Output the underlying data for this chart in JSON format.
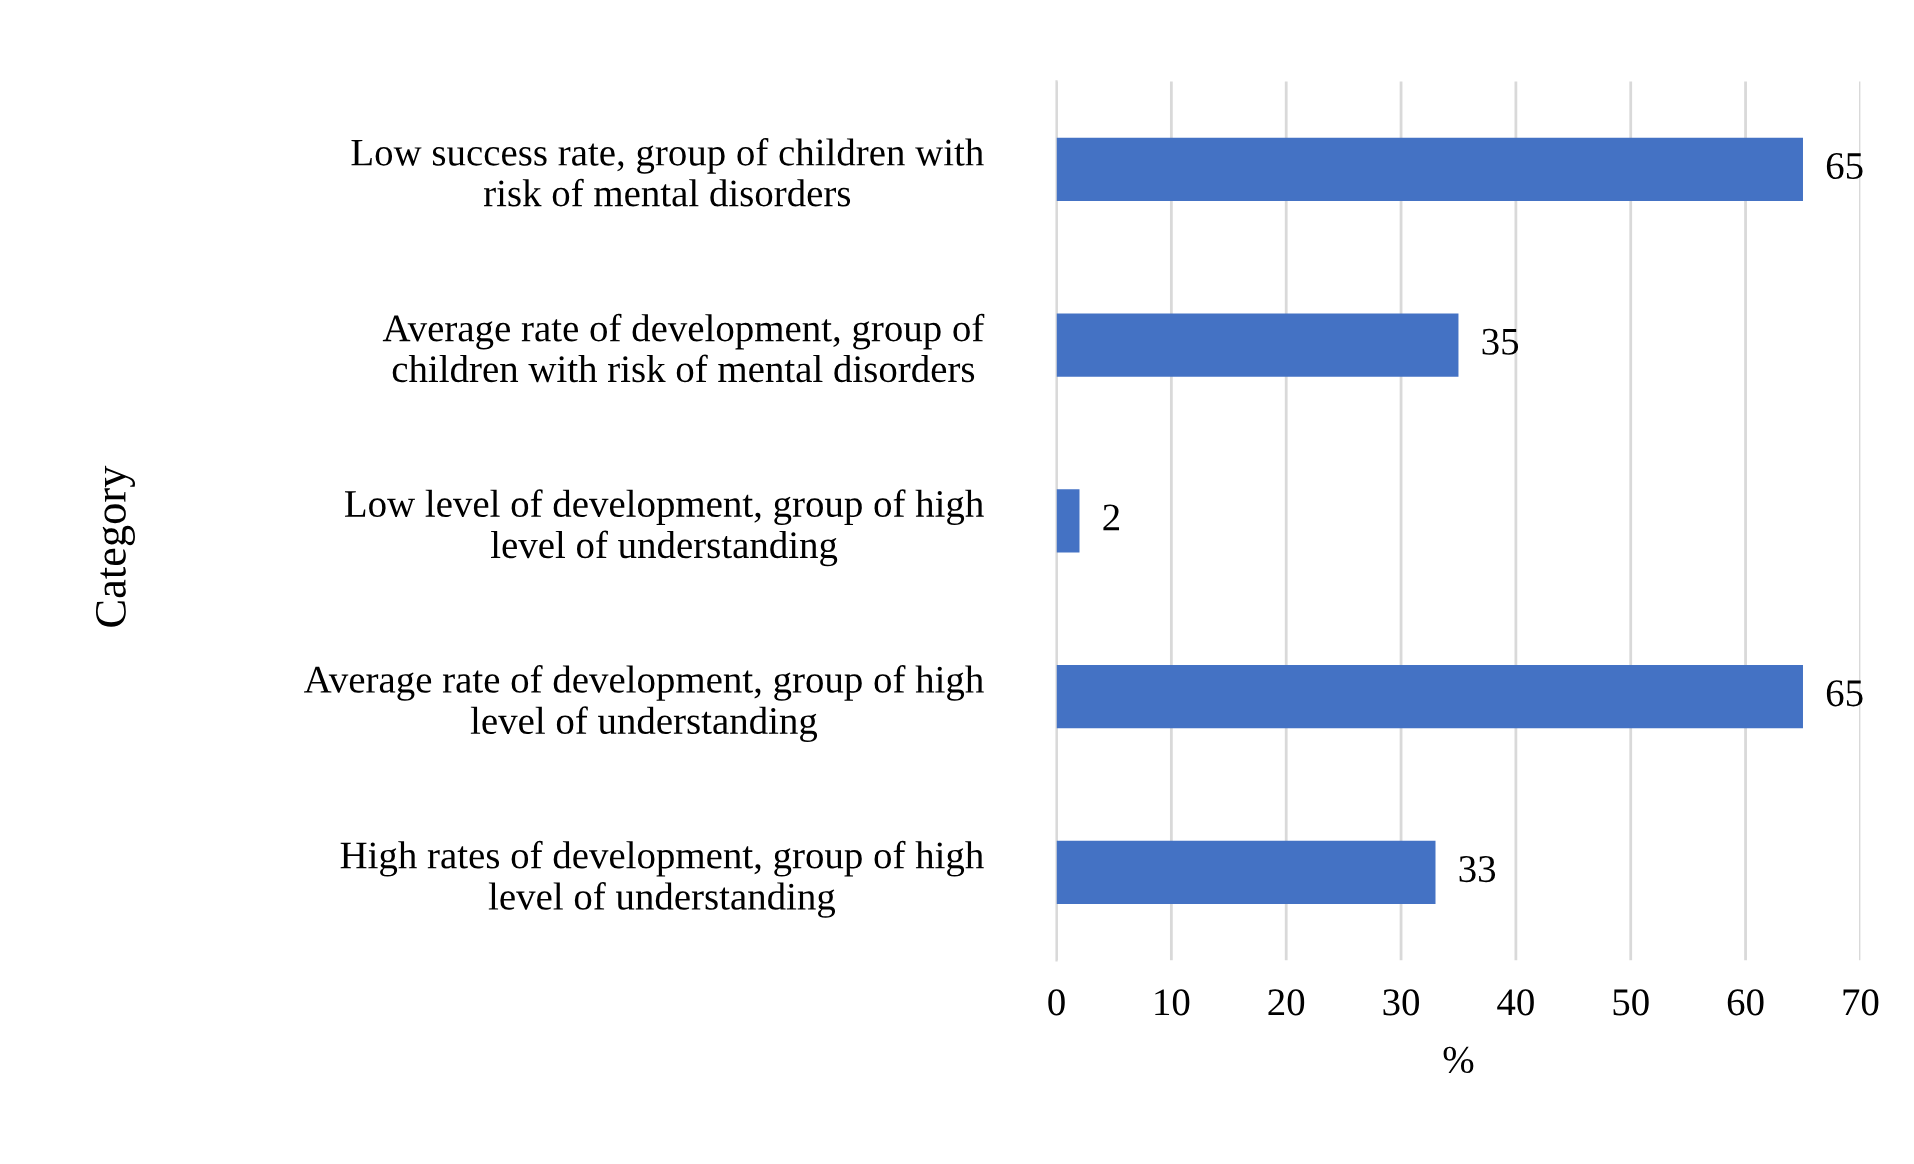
{
  "chart_data": {
    "type": "bar",
    "orientation": "horizontal",
    "categories": [
      "Low success rate, group of children with\nrisk of mental disorders",
      "Average rate of development, group of\nchildren with risk of mental disorders",
      "Low level of development, group of high\nlevel of understanding",
      "Average rate of development, group of high\nlevel of understanding",
      "High rates of development, group of high\nlevel of understanding"
    ],
    "values": [
      65,
      35,
      2,
      65,
      33
    ],
    "color": "#4472c4",
    "xlim": [
      0,
      70
    ],
    "xticks": [
      0,
      10,
      20,
      30,
      40,
      50,
      60,
      70
    ],
    "xlabel": "%",
    "ylabel": "Category",
    "grid": "x",
    "data_labels": true
  }
}
